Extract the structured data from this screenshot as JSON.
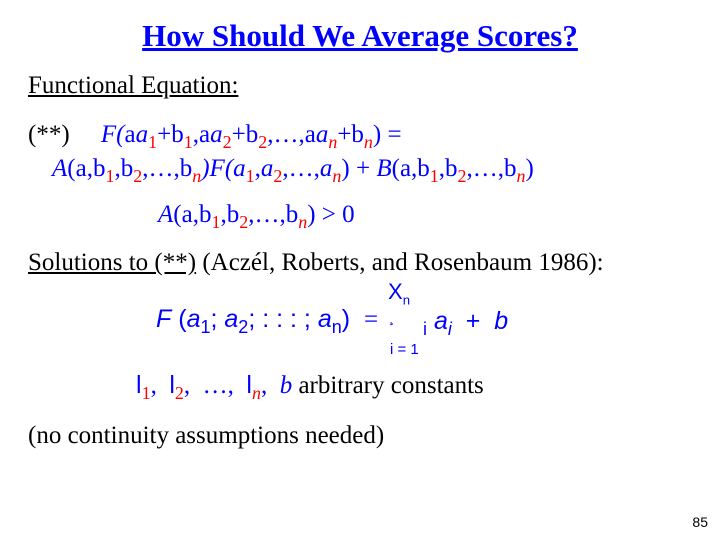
{
  "title": {
    "text": "How Should We Average Scores?",
    "color": "#0000ff",
    "fontsize": 31
  },
  "subtitle": {
    "text": "Functional Equation:",
    "fontsize": 25
  },
  "equation": {
    "marker": "(**)",
    "line1_pre": "F(",
    "a": "a",
    "plus": "+",
    "comma": ",",
    "dots": "…",
    "line1_end": ") =",
    "A": "A",
    "B": "B",
    "Fmid": ")F(",
    "closeplus": ") + ",
    "open": "(",
    "close": ")",
    "sub1": "1",
    "sub2": "2",
    "subn": "n",
    "greek_a": "a",
    "greek_b": "b",
    "ineq_tail": ") > 0",
    "fontsize": 25,
    "subcolor": "#ff0000"
  },
  "solutions": {
    "pre": "Solutions to (**)",
    "rest": " (Aczél, Roberts, and Rosenbaum 1986):",
    "fontsize": 25
  },
  "formula": {
    "F": "F",
    "open": "(",
    "a": "a",
    "semi": ";",
    "dots": ": : :",
    "close": ")",
    "eq": "=",
    "Xn": "X",
    "Xnsub": "n",
    "sumglyph": "¸",
    "lambda": "i",
    "plus": "+",
    "b": "b",
    "idx": "i = 1",
    "sub1": "1",
    "sub2": "2",
    "subn": "n",
    "subi": "i",
    "fontsize": 25
  },
  "constants": {
    "bullet": "l",
    "comma": ",",
    "dots": "…",
    "b": "b",
    "tail": "  arbitrary constants",
    "sub1": "1",
    "sub2": "2",
    "subn": "n",
    "fontsize": 25
  },
  "footer": {
    "text": "(no continuity assumptions needed)",
    "fontsize": 25
  },
  "pagenum": {
    "text": "85",
    "fontsize": 14,
    "color": "#000000"
  },
  "colors": {
    "blue": "#0000ff",
    "red": "#ff0000",
    "black": "#000000",
    "bg": "#ffffff"
  }
}
